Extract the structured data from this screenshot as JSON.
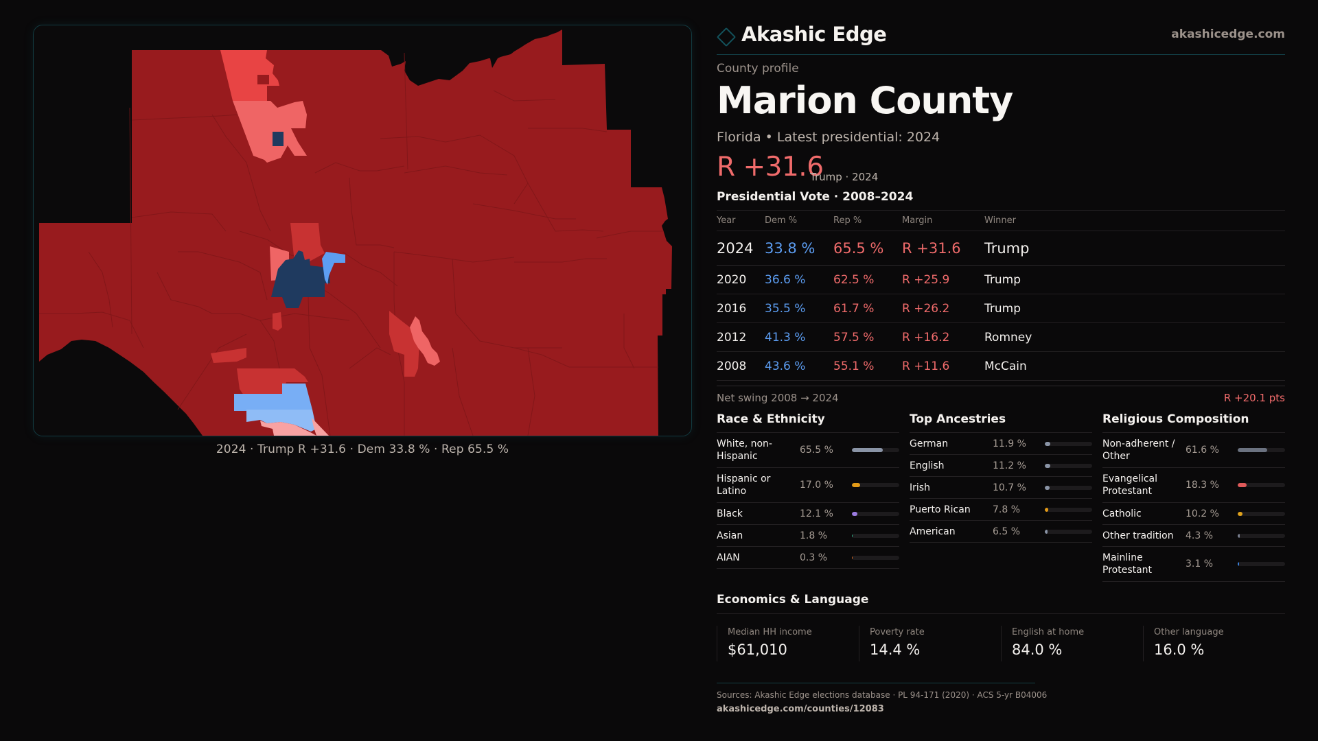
{
  "brand": {
    "name": "Akashic Edge",
    "icon": "diamond-icon",
    "site": "akashicedge.com"
  },
  "profile": {
    "eyebrow": "County profile",
    "title": "Marion County",
    "subtitle": "Florida • Latest presidential: 2024",
    "margin": "R +31.6",
    "margin_sub": "Trump · 2024"
  },
  "colors": {
    "rep": "#f06b6b",
    "dem": "#5c9df2",
    "accent": "#13525c",
    "map_rep_strong": "#981b1e",
    "map_rep_med": "#c83232",
    "map_rep_light": "#ef6565",
    "map_rep_lean": "#e84444",
    "map_rep_tilt": "#f8a2a2",
    "map_dem_strong": "#1f3a5f",
    "map_dem_med": "#5d9ef2",
    "map_dem_light": "#8fbcf6"
  },
  "map": {
    "caption": "2024 · Trump R +31.6 · Dem 33.8 % · Rep 65.5 %"
  },
  "results": {
    "title": "Presidential Vote · 2008–2024",
    "headers": [
      "Year",
      "Dem %",
      "Rep %",
      "Margin",
      "Winner"
    ],
    "rows": [
      {
        "year": "2024",
        "dem": "33.8 %",
        "rep": "65.5 %",
        "margin": "R +31.6",
        "winner": "Trump"
      },
      {
        "year": "2020",
        "dem": "36.6 %",
        "rep": "62.5 %",
        "margin": "R +25.9",
        "winner": "Trump"
      },
      {
        "year": "2016",
        "dem": "35.5 %",
        "rep": "61.7 %",
        "margin": "R +26.2",
        "winner": "Trump"
      },
      {
        "year": "2012",
        "dem": "41.3 %",
        "rep": "57.5 %",
        "margin": "R +16.2",
        "winner": "Romney"
      },
      {
        "year": "2008",
        "dem": "43.6 %",
        "rep": "55.1 %",
        "margin": "R +11.6",
        "winner": "McCain"
      }
    ],
    "swing_label": "Net swing 2008 → 2024",
    "swing_value": "R +20.1 pts"
  },
  "race": {
    "title": "Race & Ethnicity",
    "items": [
      {
        "label": "White, non-Hispanic",
        "value": "65.5 %",
        "pct": 65.5,
        "color": "#8a94a6"
      },
      {
        "label": "Hispanic or Latino",
        "value": "17.0 %",
        "pct": 17.0,
        "color": "#e39a17"
      },
      {
        "label": "Black",
        "value": "12.1 %",
        "pct": 12.1,
        "color": "#9b7be0"
      },
      {
        "label": "Asian",
        "value": "1.8 %",
        "pct": 1.8,
        "color": "#2bb58a"
      },
      {
        "label": "AIAN",
        "value": "0.3 %",
        "pct": 0.3,
        "color": "#d9651f"
      }
    ]
  },
  "ancestry": {
    "title": "Top Ancestries",
    "items": [
      {
        "label": "German",
        "value": "11.9 %",
        "pct": 11.9,
        "color": "#8a94a6"
      },
      {
        "label": "English",
        "value": "11.2 %",
        "pct": 11.2,
        "color": "#8a94a6"
      },
      {
        "label": "Irish",
        "value": "10.7 %",
        "pct": 10.7,
        "color": "#8a94a6"
      },
      {
        "label": "Puerto Rican",
        "value": "7.8 %",
        "pct": 7.8,
        "color": "#e39a17"
      },
      {
        "label": "American",
        "value": "6.5 %",
        "pct": 6.5,
        "color": "#8a94a6"
      }
    ]
  },
  "religion": {
    "title": "Religious Composition",
    "items": [
      {
        "label": "Non-adherent / Other",
        "value": "61.6 %",
        "pct": 61.6,
        "color": "#6b7280"
      },
      {
        "label": "Evangelical Protestant",
        "value": "18.3 %",
        "pct": 18.3,
        "color": "#e05a5a"
      },
      {
        "label": "Catholic",
        "value": "10.2 %",
        "pct": 10.2,
        "color": "#e0a21c"
      },
      {
        "label": "Other tradition",
        "value": "4.3 %",
        "pct": 4.3,
        "color": "#7a8090"
      },
      {
        "label": "Mainline Protestant",
        "value": "3.1 %",
        "pct": 3.1,
        "color": "#3b82e0"
      }
    ]
  },
  "economics": {
    "title": "Economics & Language",
    "cards": [
      {
        "label": "Median HH income",
        "value": "$61,010"
      },
      {
        "label": "Poverty rate",
        "value": "14.4 %"
      },
      {
        "label": "English at home",
        "value": "84.0 %"
      },
      {
        "label": "Other language",
        "value": "16.0 %"
      }
    ]
  },
  "footer": {
    "sources": "Sources: Akashic Edge elections database · PL 94-171 (2020) · ACS 5-yr B04006",
    "url": "akashicedge.com/counties/12083"
  }
}
